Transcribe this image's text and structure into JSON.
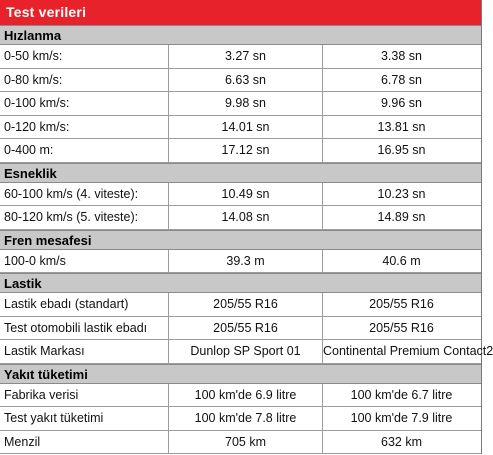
{
  "title": "Test verileri",
  "sections": [
    {
      "header": "Hızlanma",
      "rows": [
        [
          "0-50 km/s:",
          "3.27 sn",
          "3.38 sn"
        ],
        [
          "0-80 km/s:",
          "6.63 sn",
          "6.78 sn"
        ],
        [
          "0-100 km/s:",
          "9.98 sn",
          "9.96 sn"
        ],
        [
          "0-120 km/s:",
          "14.01 sn",
          "13.81 sn"
        ],
        [
          "0-400 m:",
          "17.12 sn",
          "16.95 sn"
        ]
      ]
    },
    {
      "header": "Esneklik",
      "rows": [
        [
          "60-100 km/s (4. viteste):",
          "10.49 sn",
          "10.23 sn"
        ],
        [
          "80-120 km/s (5. viteste):",
          "14.08 sn",
          "14.89 sn"
        ]
      ]
    },
    {
      "header": "Fren mesafesi",
      "rows": [
        [
          "100-0 km/s",
          "39.3 m",
          "40.6 m"
        ]
      ]
    },
    {
      "header": "Lastik",
      "rows": [
        [
          "Lastik ebadı (standart)",
          "205/55 R16",
          "205/55 R16"
        ],
        [
          "Test otomobili lastik ebadı",
          "205/55 R16",
          "205/55 R16"
        ],
        [
          "Lastik Markası",
          "Dunlop SP Sport 01",
          "Continental Premium Contact2"
        ]
      ]
    },
    {
      "header": "Yakıt tüketimi",
      "rows": [
        [
          "Fabrika verisi",
          "100 km'de 6.9 litre",
          "100 km'de 6.7 litre"
        ],
        [
          "Test yakıt tüketimi",
          "100 km'de 7.8 litre",
          "100 km'de 7.9 litre"
        ],
        [
          "Menzil",
          "705 km",
          "632 km"
        ]
      ]
    }
  ]
}
